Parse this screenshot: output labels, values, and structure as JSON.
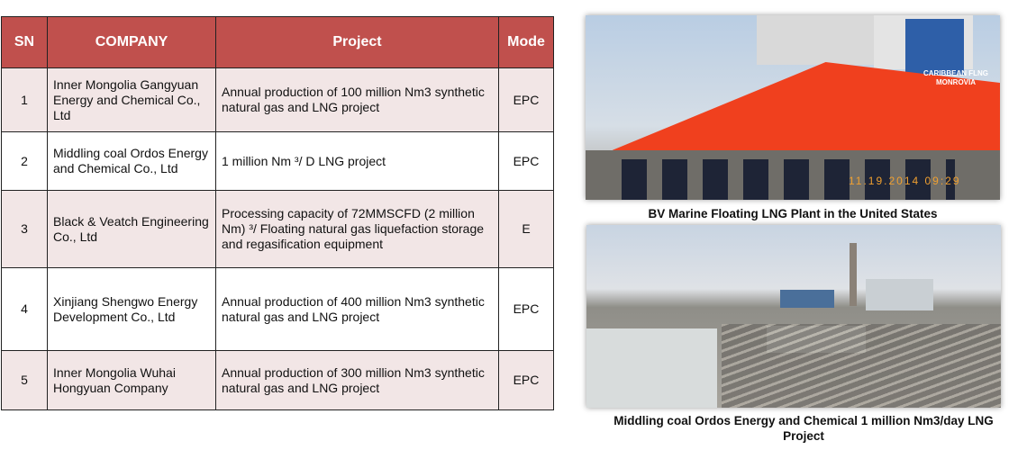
{
  "table": {
    "headers": [
      "SN",
      "COMPANY",
      "Project",
      "Mode"
    ],
    "rows": [
      {
        "sn": "1",
        "company": "Inner Mongolia Gangyuan Energy and Chemical Co., Ltd",
        "project": "Annual production of 100 million Nm3 synthetic natural gas and LNG project",
        "mode": "EPC"
      },
      {
        "sn": "2",
        "company": "Middling coal Ordos Energy and Chemical Co., Ltd",
        "project": "1 million Nm ³/ D LNG project",
        "mode": "EPC"
      },
      {
        "sn": "3",
        "company": "Black & Veatch Engineering Co., Ltd",
        "project": "Processing capacity of 72MMSCFD (2 million Nm) ³/ Floating natural gas liquefaction storage and regasification equipment",
        "mode": "E"
      },
      {
        "sn": "4",
        "company": "Xinjiang Shengwo Energy Development Co., Ltd",
        "project": "Annual production of 400 million Nm3 synthetic natural gas and LNG project",
        "mode": "EPC"
      },
      {
        "sn": "5",
        "company": "Inner Mongolia Wuhai Hongyuan Company",
        "project": "Annual production of 300 million Nm3 synthetic natural gas and LNG project",
        "mode": "EPC"
      }
    ]
  },
  "photos": [
    {
      "caption": "BV Marine Floating LNG Plant in the United States",
      "ship_name": "CARIBBEAN FLNG",
      "ship_port": "MONROVIA",
      "timestamp": "11.19.2014 09:29"
    },
    {
      "caption": "Middling coal Ordos Energy and Chemical 1 million Nm3/day LNG Project"
    }
  ],
  "colors": {
    "header": "#c0504d",
    "odd_row": "#f2e6e6",
    "hull": "#f0401e"
  }
}
